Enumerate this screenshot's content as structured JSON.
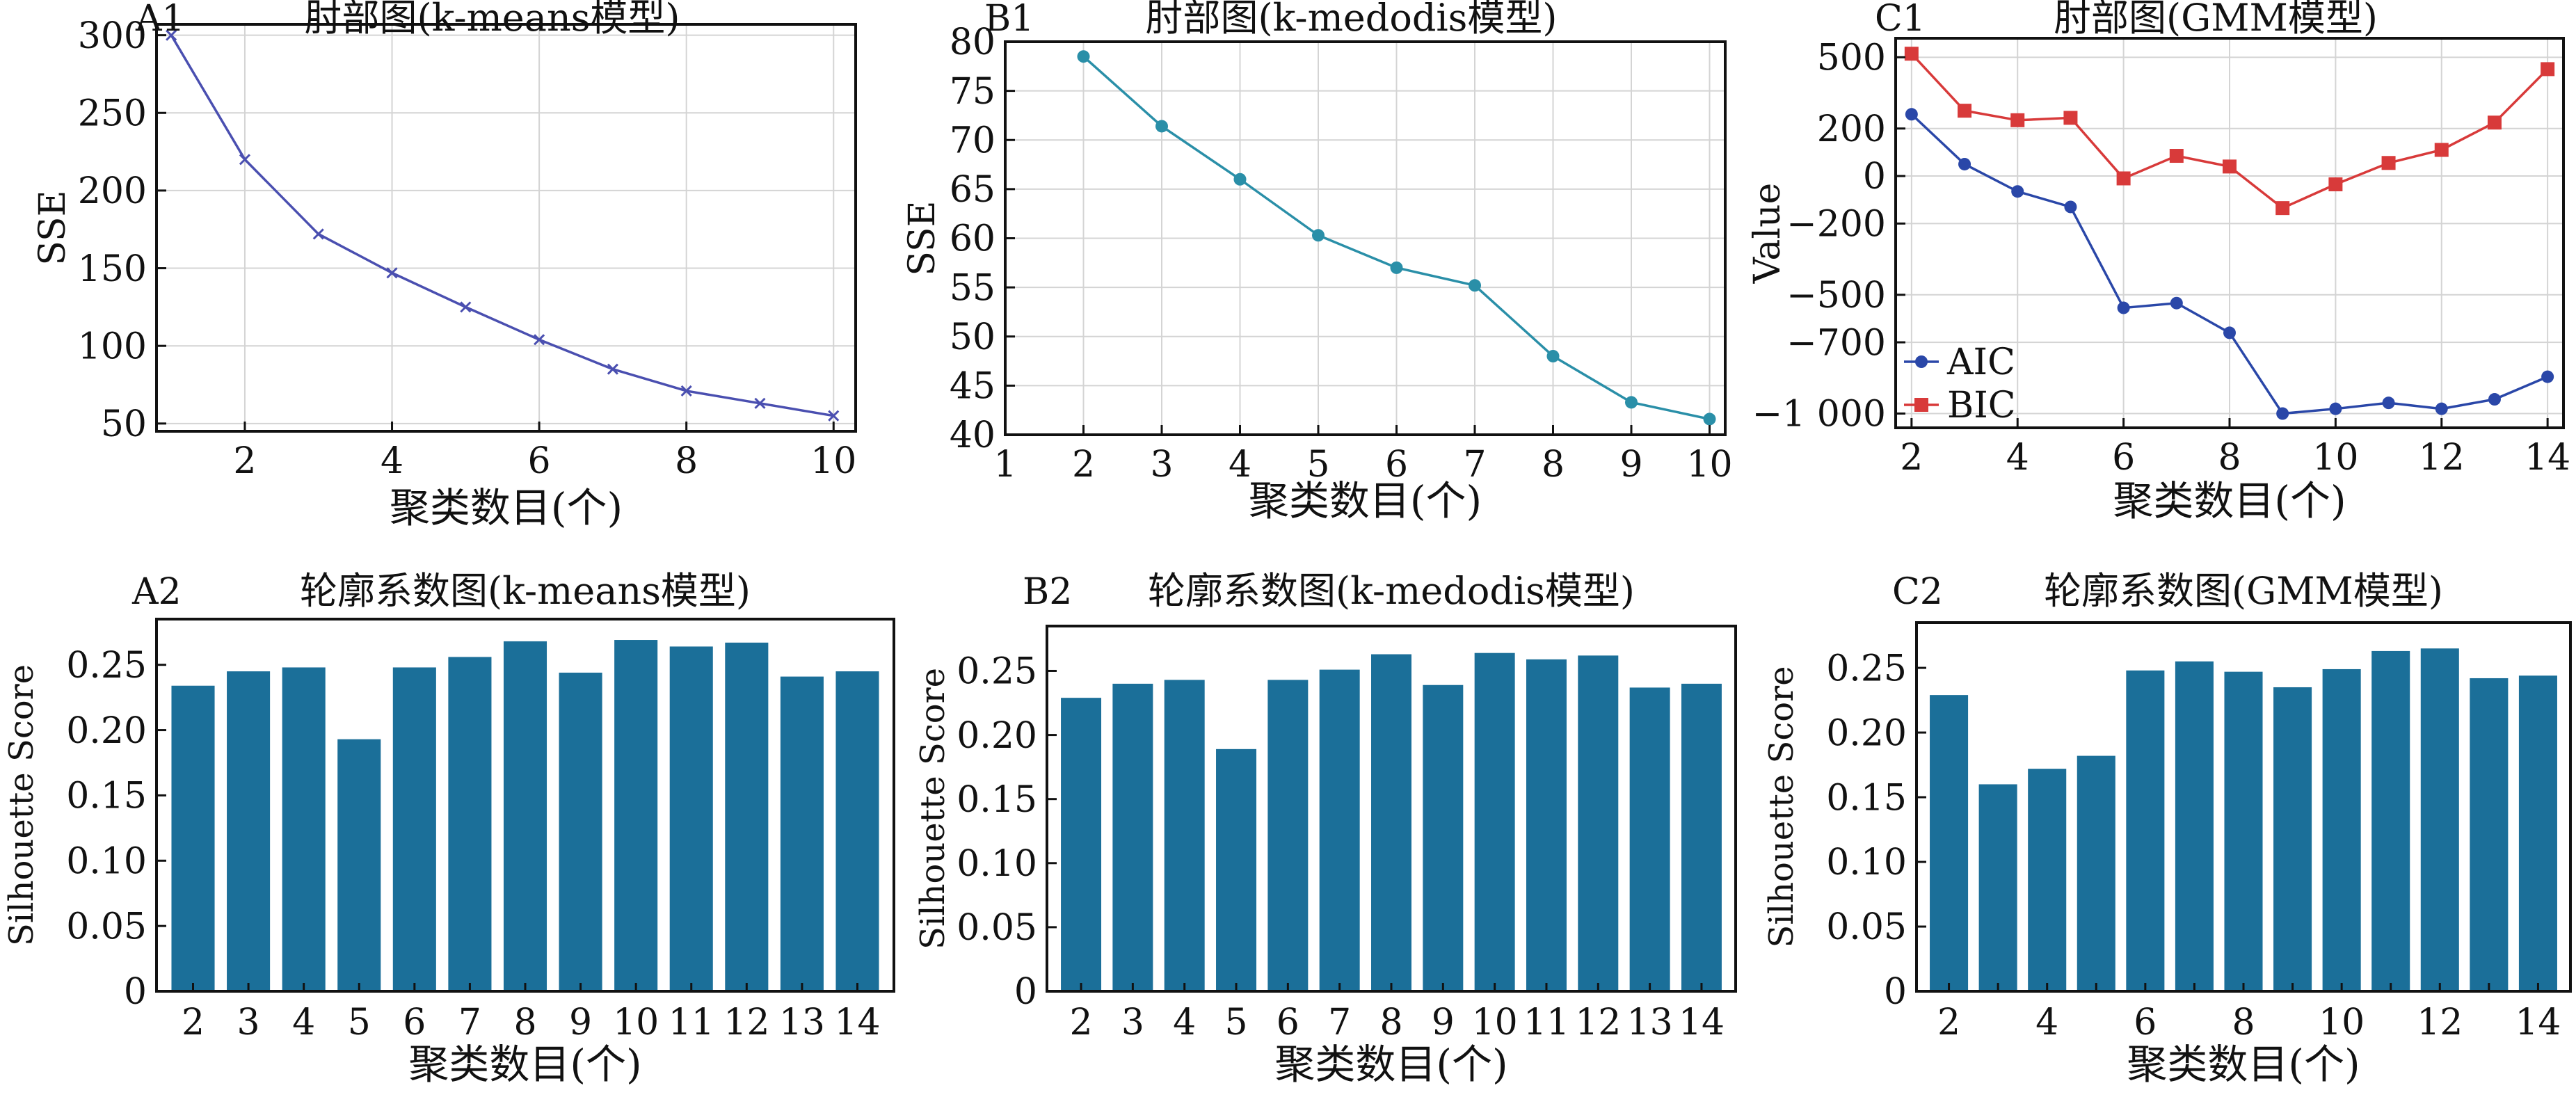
{
  "figure": {
    "background": "#ffffff"
  },
  "chart_data": [
    {
      "id": "A1",
      "panel_label": "A1",
      "type": "line",
      "title": "肘部图(k-means模型)",
      "xlabel": "聚类数目(个)",
      "ylabel": "SSE",
      "xlim": [
        0.8,
        10.3
      ],
      "ylim": [
        45,
        307
      ],
      "xticks": [
        2,
        4,
        6,
        8,
        10
      ],
      "yticks": [
        50,
        100,
        150,
        200,
        250,
        300
      ],
      "grid": true,
      "x": [
        1,
        2,
        3,
        4,
        5,
        6,
        7,
        8,
        9,
        10
      ],
      "series": [
        {
          "values": [
            300,
            220,
            172,
            147,
            125,
            104,
            85,
            71,
            63,
            55
          ],
          "color": "#4a4fb0",
          "marker": "x"
        }
      ]
    },
    {
      "id": "B1",
      "panel_label": "B1",
      "type": "line",
      "title": "肘部图(k-medodis模型)",
      "xlabel": "聚类数目(个)",
      "ylabel": "SSE",
      "xlim": [
        1,
        10.2
      ],
      "ylim": [
        40,
        80
      ],
      "xticks": [
        1,
        2,
        3,
        4,
        5,
        6,
        7,
        8,
        9,
        10
      ],
      "yticks": [
        40,
        45,
        50,
        55,
        60,
        65,
        70,
        75,
        80
      ],
      "grid": true,
      "x": [
        2,
        3,
        4,
        5,
        6,
        7,
        8,
        9,
        10
      ],
      "series": [
        {
          "values": [
            78.5,
            71.4,
            66.0,
            60.3,
            57.0,
            55.2,
            48.0,
            43.3,
            41.6
          ],
          "color": "#2a8fa8",
          "marker": "dot"
        }
      ]
    },
    {
      "id": "C1",
      "panel_label": "C1",
      "type": "line",
      "title": "肘部图(GMM模型)",
      "xlabel": "聚类数目(个)",
      "ylabel": "Value",
      "xlim": [
        1.7,
        14.3
      ],
      "ylim": [
        -1060,
        580
      ],
      "xticks": [
        2,
        4,
        6,
        8,
        10,
        12,
        14
      ],
      "yticks": [
        500,
        200,
        0,
        -200,
        -500,
        -700,
        -1000
      ],
      "ytick_labels": [
        "500",
        "200",
        "0",
        "−200",
        "−500",
        "−700",
        "−1 000"
      ],
      "grid": true,
      "legend": "lower-left",
      "x": [
        2,
        3,
        4,
        5,
        6,
        7,
        8,
        9,
        10,
        11,
        12,
        13,
        14
      ],
      "series": [
        {
          "name": "AIC",
          "values": [
            260,
            50,
            -65,
            -130,
            -555,
            -535,
            -660,
            -1000,
            -980,
            -955,
            -980,
            -940,
            -845
          ],
          "color": "#2a47a8",
          "marker": "dot"
        },
        {
          "name": "BIC",
          "values": [
            515,
            275,
            235,
            245,
            -10,
            85,
            40,
            -135,
            -35,
            55,
            110,
            225,
            450
          ],
          "color": "#d83a3a",
          "marker": "square"
        }
      ]
    },
    {
      "id": "A2",
      "panel_label": "A2",
      "type": "bar",
      "title": "轮廓系数图(k-means模型)",
      "xlabel": "聚类数目(个)",
      "ylabel": "Silhouette Score",
      "ylim": [
        0,
        0.285
      ],
      "yticks": [
        0,
        0.05,
        0.1,
        0.15,
        0.2,
        0.25
      ],
      "ytick_labels": [
        "0",
        "0.05",
        "0.10",
        "0.15",
        "0.20",
        "0.25"
      ],
      "categories": [
        "2",
        "3",
        "4",
        "5",
        "6",
        "7",
        "8",
        "9",
        "10",
        "11",
        "12",
        "13",
        "14"
      ],
      "xtick_labels": [
        "2",
        "3",
        "4",
        "5",
        "6",
        "7",
        "8",
        "9",
        "10",
        "11",
        "12",
        "13",
        "14"
      ],
      "values": [
        0.234,
        0.245,
        0.248,
        0.193,
        0.248,
        0.256,
        0.268,
        0.244,
        0.269,
        0.264,
        0.267,
        0.241,
        0.245
      ],
      "color": "#1b6f99"
    },
    {
      "id": "B2",
      "panel_label": "B2",
      "type": "bar",
      "title": "轮廓系数图(k-medodis模型)",
      "xlabel": "聚类数目(个)",
      "ylabel": "Silhouette Score",
      "ylim": [
        0,
        0.285
      ],
      "yticks": [
        0,
        0.05,
        0.1,
        0.15,
        0.2,
        0.25
      ],
      "ytick_labels": [
        "0",
        "0.05",
        "0.10",
        "0.15",
        "0.20",
        "0.25"
      ],
      "categories": [
        "2",
        "3",
        "4",
        "5",
        "6",
        "7",
        "8",
        "9",
        "10",
        "11",
        "12",
        "13",
        "14"
      ],
      "xtick_labels": [
        "2",
        "3",
        "4",
        "5",
        "6",
        "7",
        "8",
        "9",
        "10",
        "11",
        "12",
        "13",
        "14"
      ],
      "values": [
        0.229,
        0.24,
        0.243,
        0.189,
        0.243,
        0.251,
        0.263,
        0.239,
        0.264,
        0.259,
        0.262,
        0.237,
        0.24
      ],
      "color": "#1b6f99"
    },
    {
      "id": "C2",
      "panel_label": "C2",
      "type": "bar",
      "title": "轮廓系数图(GMM模型)",
      "xlabel": "聚类数目(个)",
      "ylabel": "Silhouette Score",
      "ylim": [
        0,
        0.285
      ],
      "yticks": [
        0,
        0.05,
        0.1,
        0.15,
        0.2,
        0.25
      ],
      "ytick_labels": [
        "0",
        "0.05",
        "0.10",
        "0.15",
        "0.20",
        "0.25"
      ],
      "categories": [
        "2",
        "3",
        "4",
        "5",
        "6",
        "7",
        "8",
        "9",
        "10",
        "11",
        "12",
        "13",
        "14"
      ],
      "xtick_labels": [
        "2",
        "",
        "4",
        "",
        "6",
        "",
        "8",
        "",
        "10",
        "",
        "12",
        "",
        "14"
      ],
      "values": [
        0.229,
        0.16,
        0.172,
        0.182,
        0.248,
        0.255,
        0.247,
        0.235,
        0.249,
        0.263,
        0.265,
        0.242,
        0.244
      ],
      "color": "#1b6f99"
    }
  ]
}
